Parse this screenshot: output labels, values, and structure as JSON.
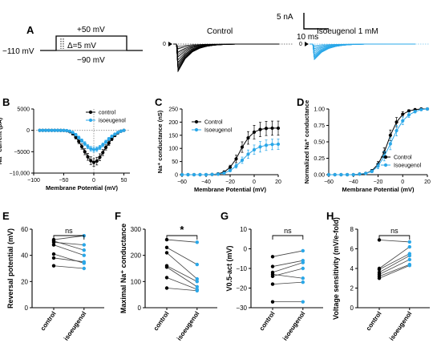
{
  "colors": {
    "control": "#000000",
    "isoeugenol": "#2aa7e8",
    "grid": "#888888"
  },
  "panel_a": {
    "label": "A",
    "holding": "−110 mV",
    "step_top": "+50 mV",
    "step_delta": "Δ=5 mV",
    "step_bottom": "−90 mV",
    "scale_current": "5 nA",
    "scale_time": "10 ms",
    "trace_control_title": "Control",
    "trace_iso_title": "Isoeugenol 1 mM",
    "zero_marker": "0"
  },
  "chart_data": [
    {
      "id": "B",
      "type": "line",
      "label": "B",
      "xlabel": "Membrane Potential (mV)",
      "ylabel": "Na⁺ current (pA)",
      "xlim": [
        -100,
        60
      ],
      "ylim": [
        -10000,
        5000
      ],
      "xticks": [
        -100,
        -50,
        0,
        50
      ],
      "xticklabels": [
        "−100",
        "−50",
        "0",
        "50"
      ],
      "yticks": [
        -10000,
        -5000,
        0,
        5000
      ],
      "yticklabels": [
        "−10,000",
        "−5000",
        "0",
        "5000"
      ],
      "legend": "top-right",
      "x": [
        -90,
        -85,
        -80,
        -75,
        -70,
        -65,
        -60,
        -55,
        -50,
        -45,
        -40,
        -35,
        -30,
        -25,
        -20,
        -15,
        -10,
        -5,
        0,
        5,
        10,
        15,
        20,
        25,
        30,
        35,
        40,
        45,
        50
      ],
      "series": [
        {
          "name": "control",
          "color_key": "control",
          "values": [
            0,
            0,
            0,
            0,
            0,
            0,
            0,
            -10,
            -30,
            -100,
            -300,
            -800,
            -1600,
            -2600,
            -3800,
            -5000,
            -6200,
            -7100,
            -7500,
            -7200,
            -6300,
            -5200,
            -4000,
            -3000,
            -2000,
            -1200,
            -600,
            -200,
            0
          ],
          "err": [
            0,
            0,
            0,
            0,
            0,
            0,
            0,
            20,
            40,
            80,
            150,
            300,
            400,
            500,
            600,
            700,
            800,
            900,
            900,
            900,
            800,
            700,
            600,
            500,
            400,
            300,
            200,
            100,
            50
          ]
        },
        {
          "name": "isoeugenol",
          "color_key": "isoeugenol",
          "values": [
            0,
            0,
            0,
            0,
            0,
            0,
            0,
            -10,
            -20,
            -60,
            -200,
            -500,
            -1000,
            -1700,
            -2400,
            -3100,
            -3800,
            -4300,
            -4500,
            -4400,
            -4000,
            -3400,
            -2700,
            -2000,
            -1400,
            -900,
            -500,
            -200,
            0
          ],
          "err": [
            0,
            0,
            0,
            0,
            0,
            0,
            0,
            20,
            30,
            60,
            100,
            200,
            300,
            350,
            400,
            450,
            500,
            550,
            600,
            550,
            500,
            450,
            400,
            350,
            300,
            250,
            200,
            100,
            50
          ]
        }
      ]
    },
    {
      "id": "C",
      "type": "line",
      "label": "C",
      "xlabel": "Membrane Potential (mV)",
      "ylabel": "Na⁺ conductance (nS)",
      "xlim": [
        -60,
        20
      ],
      "ylim": [
        0,
        250
      ],
      "xticks": [
        -60,
        -40,
        -20,
        0,
        20
      ],
      "xticklabels": [
        "−60",
        "−40",
        "−20",
        "0",
        "20"
      ],
      "yticks": [
        0,
        50,
        100,
        150,
        200,
        250
      ],
      "yticklabels": [
        "0",
        "50",
        "100",
        "150",
        "200",
        "250"
      ],
      "legend": "center-left",
      "x": [
        -60,
        -55,
        -50,
        -45,
        -40,
        -35,
        -30,
        -25,
        -20,
        -15,
        -10,
        -5,
        0,
        5,
        10,
        15,
        20
      ],
      "series": [
        {
          "name": "Control",
          "color_key": "control",
          "values": [
            0,
            0,
            0,
            0,
            0,
            1,
            3,
            10,
            28,
            60,
            105,
            140,
            162,
            172,
            176,
            177,
            177
          ],
          "err": [
            0,
            0,
            0,
            0,
            0,
            1,
            2,
            4,
            8,
            14,
            20,
            24,
            26,
            27,
            27,
            27,
            27
          ]
        },
        {
          "name": "Isoeugenol",
          "color_key": "isoeugenol",
          "values": [
            0,
            0,
            0,
            0,
            0,
            1,
            2,
            6,
            16,
            33,
            55,
            78,
            95,
            106,
            112,
            115,
            116
          ],
          "err": [
            0,
            0,
            0,
            0,
            0,
            1,
            1,
            3,
            5,
            8,
            12,
            16,
            18,
            20,
            20,
            20,
            20
          ]
        }
      ]
    },
    {
      "id": "D",
      "type": "line",
      "label": "D",
      "xlabel": "Membrane Potential (mV)",
      "ylabel": "Normalized Na⁺ conductance",
      "xlim": [
        -60,
        20
      ],
      "ylim": [
        0,
        1
      ],
      "xticks": [
        -60,
        -40,
        -20,
        0,
        20
      ],
      "xticklabels": [
        "−60",
        "−40",
        "−20",
        "0",
        "20"
      ],
      "yticks": [
        0,
        0.25,
        0.5,
        0.75,
        1
      ],
      "yticklabels": [
        "0.00",
        "0.25",
        "0.50",
        "0.75",
        "1.00"
      ],
      "legend": "bottom-right",
      "x": [
        -60,
        -55,
        -50,
        -45,
        -40,
        -35,
        -30,
        -25,
        -20,
        -15,
        -10,
        -5,
        0,
        5,
        10,
        15,
        20
      ],
      "series": [
        {
          "name": "Control",
          "color_key": "control",
          "values": [
            0,
            0,
            0,
            0,
            0,
            0.01,
            0.02,
            0.06,
            0.16,
            0.34,
            0.6,
            0.8,
            0.92,
            0.97,
            0.99,
            1,
            1
          ],
          "err": [
            0,
            0,
            0,
            0,
            0,
            0.01,
            0.01,
            0.02,
            0.04,
            0.07,
            0.08,
            0.07,
            0.04,
            0.02,
            0.01,
            0,
            0
          ]
        },
        {
          "name": "Isoeugenol",
          "color_key": "isoeugenol",
          "values": [
            0,
            0,
            0,
            0,
            0,
            0.01,
            0.02,
            0.05,
            0.13,
            0.28,
            0.47,
            0.67,
            0.82,
            0.91,
            0.96,
            0.99,
            1
          ],
          "err": [
            0,
            0,
            0,
            0,
            0,
            0.01,
            0.01,
            0.02,
            0.04,
            0.07,
            0.09,
            0.08,
            0.06,
            0.04,
            0.02,
            0.01,
            0
          ]
        }
      ]
    },
    {
      "id": "E",
      "type": "scatter",
      "label": "E",
      "ylabel": "Reversal potential (mV)",
      "categories": [
        "control",
        "isoeugenol"
      ],
      "ylim": [
        0,
        60
      ],
      "yticks": [
        0,
        20,
        40,
        60
      ],
      "yticklabels": [
        "0",
        "20",
        "40",
        "60"
      ],
      "significance": "ns",
      "pairs": [
        [
          52,
          55
        ],
        [
          50,
          48
        ],
        [
          51,
          44
        ],
        [
          48,
          40
        ],
        [
          41,
          34
        ],
        [
          38,
          35
        ],
        [
          32,
          30
        ]
      ]
    },
    {
      "id": "F",
      "type": "scatter",
      "label": "F",
      "ylabel": "Maximal Na⁺ conductance",
      "categories": [
        "control",
        "isoeugenol"
      ],
      "ylim": [
        0,
        300
      ],
      "yticks": [
        0,
        100,
        200,
        300
      ],
      "yticklabels": [
        "0",
        "100",
        "200",
        "300"
      ],
      "significance": "*",
      "pairs": [
        [
          260,
          250
        ],
        [
          230,
          165
        ],
        [
          210,
          110
        ],
        [
          160,
          100
        ],
        [
          155,
          80
        ],
        [
          115,
          70
        ],
        [
          75,
          65
        ]
      ]
    },
    {
      "id": "G",
      "type": "scatter",
      "label": "G",
      "ylabel": "V0.5-act (mV)",
      "categories": [
        "control",
        "isoeugenol"
      ],
      "ylim": [
        -30,
        10
      ],
      "yticks": [
        -30,
        -20,
        -10,
        0,
        10
      ],
      "yticklabels": [
        "−30",
        "−20",
        "−10",
        "0",
        "10"
      ],
      "significance": "ns",
      "pairs": [
        [
          -4,
          -1
        ],
        [
          -9,
          -6
        ],
        [
          -12,
          -7
        ],
        [
          -14,
          -10
        ],
        [
          -13,
          -15
        ],
        [
          -18,
          -17
        ],
        [
          -27,
          -27
        ]
      ]
    },
    {
      "id": "H",
      "type": "scatter",
      "label": "H",
      "ylabel": "Voltage sensitivity (mV/e-fold)",
      "categories": [
        "control",
        "isoeugenol"
      ],
      "ylim": [
        0,
        8
      ],
      "yticks": [
        0,
        2,
        4,
        6,
        8
      ],
      "yticklabels": [
        "0",
        "2",
        "4",
        "6",
        "8"
      ],
      "significance": "ns",
      "pairs": [
        [
          6.9,
          6.7
        ],
        [
          4.0,
          6.2
        ],
        [
          3.9,
          5.5
        ],
        [
          3.6,
          5.3
        ],
        [
          3.4,
          4.9
        ],
        [
          3.2,
          4.4
        ],
        [
          3.0,
          4.3
        ]
      ]
    }
  ]
}
